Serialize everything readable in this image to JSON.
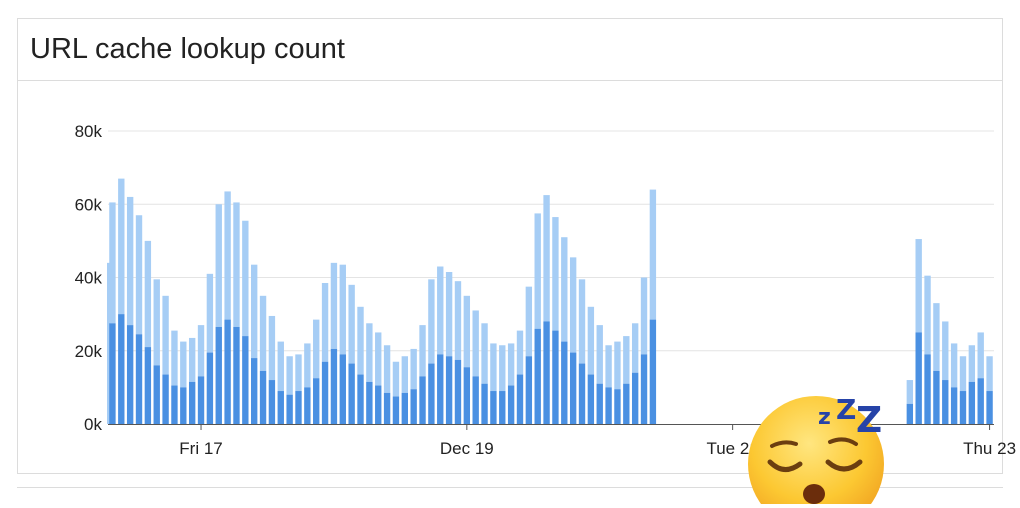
{
  "panel": {
    "title": "URL cache lookup count"
  },
  "chart_data": {
    "type": "bar",
    "stacked": true,
    "title": "URL cache lookup count",
    "ylim": [
      0,
      80000
    ],
    "yticks": [
      {
        "value": 0,
        "label": "0k"
      },
      {
        "value": 20000,
        "label": "20k"
      },
      {
        "value": 40000,
        "label": "40k"
      },
      {
        "value": 60000,
        "label": "60k"
      },
      {
        "value": 80000,
        "label": "80k"
      }
    ],
    "xticks": [
      {
        "index": 10,
        "label": "Fri 17"
      },
      {
        "index": 40,
        "label": "Dec 19"
      },
      {
        "index": 70,
        "label": "Tue 21"
      },
      {
        "index": 99,
        "label": "Thu 23"
      }
    ],
    "grid": true,
    "colors": {
      "lower": "#4a90e2",
      "upper": "#a6cdf5",
      "grid": "#e4e4e4",
      "axis": "#555555"
    },
    "series": [
      {
        "values": [
          27500,
          30000,
          27000,
          24500,
          21000,
          16000,
          13500,
          10500,
          10000,
          11500,
          13000,
          19500,
          26500,
          28500,
          26500,
          24000,
          18000,
          14500,
          12000,
          9000,
          8000,
          9000,
          10000,
          12500,
          17000,
          20500,
          19000,
          16500,
          13500,
          11500,
          10500,
          8500,
          7500,
          8500,
          9500,
          13000,
          16500,
          19000,
          18500,
          17500,
          15500,
          13000,
          11000,
          9000,
          9000,
          10500,
          13500,
          18500,
          26000,
          28000,
          25500,
          22500,
          19500,
          16500,
          13500,
          11000,
          10000,
          9500,
          11000,
          14000,
          19000,
          28500,
          null,
          null,
          null,
          null,
          null,
          null,
          null,
          null,
          null,
          null,
          null,
          null,
          null,
          null,
          null,
          null,
          null,
          null,
          null,
          null,
          null,
          null,
          null,
          null,
          null,
          null,
          null,
          null,
          5500,
          25000,
          19000,
          14500,
          12000,
          10000,
          9000,
          11500,
          12500,
          9000
        ]
      },
      {
        "values": [
          33000,
          37000,
          35000,
          32500,
          29000,
          23500,
          21500,
          15000,
          12500,
          12000,
          14000,
          21500,
          33500,
          35000,
          34000,
          31500,
          25500,
          20500,
          17500,
          13500,
          10500,
          10000,
          12000,
          16000,
          21500,
          23500,
          24500,
          21500,
          18500,
          16000,
          14500,
          13000,
          9500,
          10000,
          11000,
          14000,
          23000,
          24000,
          23000,
          21500,
          19500,
          18000,
          16500,
          13000,
          12500,
          11500,
          12000,
          19000,
          31500,
          34500,
          31000,
          28500,
          26000,
          23000,
          18500,
          16000,
          11500,
          13000,
          13000,
          13500,
          21000,
          35500,
          null,
          null,
          null,
          null,
          null,
          null,
          null,
          null,
          null,
          null,
          null,
          null,
          null,
          null,
          null,
          null,
          null,
          null,
          null,
          null,
          null,
          null,
          null,
          null,
          null,
          null,
          null,
          null,
          6500,
          25500,
          21500,
          18500,
          16000,
          12000,
          9500,
          10000,
          12500,
          9500
        ]
      }
    ],
    "bar_start_value": 44000
  }
}
